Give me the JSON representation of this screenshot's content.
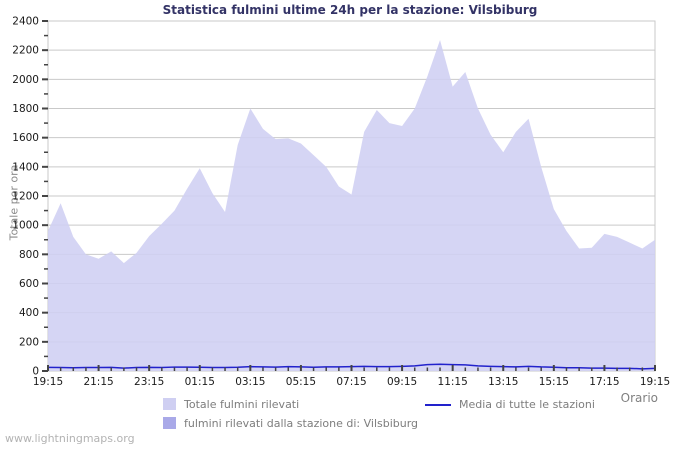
{
  "title": "Statistica fulmini ultime 24h per la stazione: Vilsbiburg",
  "watermark": "www.lightningmaps.org",
  "axes": {
    "x_label": "Orario",
    "y_label": "Totale per ora"
  },
  "colors": {
    "title": "#333366",
    "plot_bg": "#ffffff",
    "plot_border": "#c9c9c9",
    "grid": "#c9c9c9",
    "axis_tick": "#444444",
    "tick_label": "#1a1a1a",
    "muted_text": "#808080",
    "watermark": "#b3b3b3",
    "area_total": "#cfcff2",
    "area_station": "#a9a9e8",
    "line_media": "#2222cc"
  },
  "chart_data": {
    "type": "area",
    "title": "Statistica fulmini ultime 24h per la stazione: Vilsbiburg",
    "xlabel": "Orario",
    "ylabel": "Totale per ora",
    "ylim": [
      0,
      2400
    ],
    "ytick_step": 200,
    "ytick_minor_step": 100,
    "grid": true,
    "legend_position": "bottom",
    "x_major_label_every": 4,
    "x": [
      "19:15",
      "19:45",
      "20:15",
      "20:45",
      "21:15",
      "21:45",
      "22:15",
      "22:45",
      "23:15",
      "23:45",
      "00:15",
      "00:45",
      "01:15",
      "01:45",
      "02:15",
      "02:45",
      "03:15",
      "03:45",
      "04:15",
      "04:45",
      "05:15",
      "05:45",
      "06:15",
      "06:45",
      "07:15",
      "07:45",
      "08:15",
      "08:45",
      "09:15",
      "09:45",
      "10:15",
      "10:45",
      "11:15",
      "11:45",
      "12:15",
      "12:45",
      "13:15",
      "13:45",
      "14:15",
      "14:45",
      "15:15",
      "15:45",
      "16:15",
      "16:45",
      "17:15",
      "17:45",
      "18:15",
      "18:45",
      "19:15"
    ],
    "x_major_ticks": [
      "19:15",
      "21:15",
      "23:15",
      "01:15",
      "03:15",
      "05:15",
      "07:15",
      "09:15",
      "11:15",
      "13:15",
      "15:15",
      "17:15",
      "19:15"
    ],
    "series": [
      {
        "name": "Totale fulmini rilevati",
        "type": "area",
        "color": "#cfcff2",
        "values": [
          960,
          1150,
          920,
          800,
          770,
          820,
          740,
          810,
          925,
          1010,
          1100,
          1250,
          1390,
          1220,
          1090,
          1550,
          1800,
          1660,
          1590,
          1595,
          1560,
          1480,
          1400,
          1265,
          1210,
          1640,
          1790,
          1700,
          1680,
          1800,
          2020,
          2270,
          1950,
          2050,
          1800,
          1620,
          1500,
          1640,
          1730,
          1400,
          1110,
          960,
          840,
          845,
          940,
          920,
          880,
          840,
          900
        ]
      },
      {
        "name": "fulmini rilevati dalla stazione di: Vilsbiburg",
        "type": "area",
        "color": "#a9a9e8",
        "values": [
          0,
          0,
          0,
          0,
          0,
          0,
          0,
          0,
          0,
          0,
          0,
          0,
          0,
          0,
          0,
          0,
          0,
          0,
          0,
          0,
          0,
          0,
          0,
          0,
          0,
          0,
          0,
          0,
          0,
          0,
          0,
          0,
          0,
          0,
          0,
          0,
          0,
          0,
          0,
          0,
          0,
          0,
          0,
          0,
          0,
          0,
          0,
          0,
          0
        ]
      },
      {
        "name": "Media di tutte le stazioni",
        "type": "line",
        "color": "#2222cc",
        "values": [
          25,
          24,
          22,
          24,
          24,
          25,
          20,
          24,
          25,
          24,
          27,
          27,
          26,
          24,
          24,
          26,
          30,
          28,
          27,
          30,
          28,
          26,
          28,
          28,
          30,
          32,
          30,
          30,
          32,
          35,
          44,
          46,
          44,
          42,
          35,
          32,
          30,
          28,
          32,
          28,
          26,
          22,
          22,
          20,
          20,
          18,
          18,
          15,
          18
        ]
      }
    ]
  }
}
